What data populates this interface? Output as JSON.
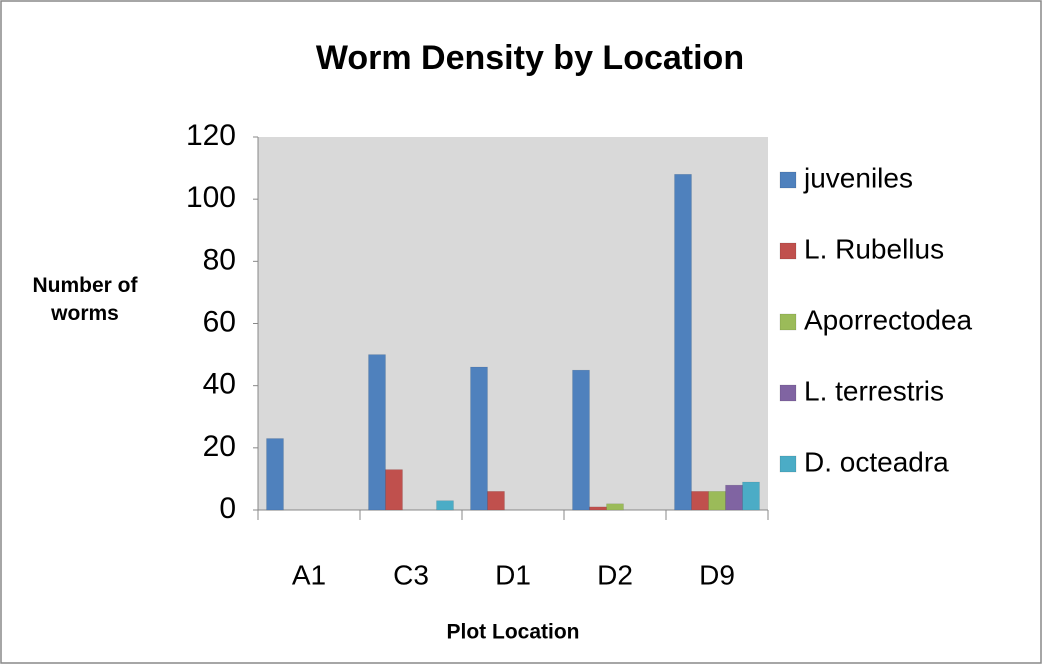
{
  "chart_data": {
    "type": "bar",
    "title": "Worm Density by Location",
    "x_label": "Plot Location",
    "y_label": "Number of worms",
    "categories": [
      "A1",
      "C3",
      "D1",
      "D2",
      "D9"
    ],
    "series": [
      {
        "name": "juveniles",
        "color": "#4f81bd",
        "values": [
          23,
          50,
          46,
          45,
          108
        ]
      },
      {
        "name": "L. Rubellus",
        "color": "#c0504d",
        "values": [
          0,
          13,
          6,
          1,
          6
        ]
      },
      {
        "name": "Aporrectodea",
        "color": "#9bbb59",
        "values": [
          0,
          0,
          0,
          2,
          6
        ]
      },
      {
        "name": "L. terrestris",
        "color": "#8064a2",
        "values": [
          0,
          0,
          0,
          0,
          8
        ]
      },
      {
        "name": "D. octeadra",
        "color": "#4bacc6",
        "values": [
          0,
          3,
          0,
          0,
          9
        ]
      }
    ],
    "ylim": [
      0,
      120
    ],
    "yticks": [
      0,
      20,
      40,
      60,
      80,
      100,
      120
    ],
    "grid": false,
    "legend": "right"
  }
}
